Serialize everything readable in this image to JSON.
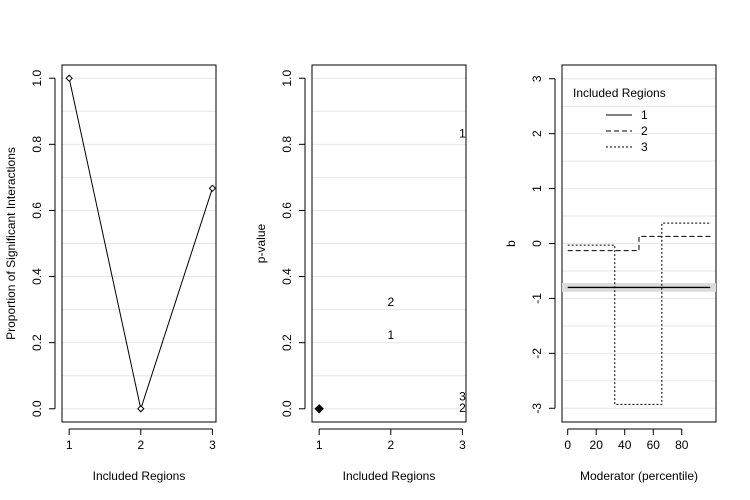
{
  "chart_data": [
    {
      "type": "line",
      "xlabel": "Included Regions",
      "ylabel": "Proportion of Significant Interactions",
      "x": [
        1,
        2,
        3
      ],
      "values": [
        1.0,
        0.0,
        0.667
      ],
      "xlim": [
        0.9,
        3.05
      ],
      "ylim": [
        -0.04,
        1.04
      ],
      "xticks": [
        "1",
        "2",
        "3"
      ],
      "yticks": [
        "0.0",
        "0.2",
        "0.4",
        "0.6",
        "0.8",
        "1.0"
      ],
      "grid": true,
      "marker": "open-diamond"
    },
    {
      "type": "scatter",
      "xlabel": "Included Regions",
      "ylabel": "p-value",
      "xlim": [
        0.9,
        3.05
      ],
      "ylim": [
        -0.04,
        1.04
      ],
      "xticks": [
        "1",
        "2",
        "3"
      ],
      "yticks": [
        "0.0",
        "0.2",
        "0.4",
        "0.6",
        "0.8",
        "1.0"
      ],
      "grid": true,
      "marker_point": {
        "x": 1,
        "y": 0.0
      },
      "labels": [
        {
          "x": 2,
          "y": 0.32,
          "text": "2"
        },
        {
          "x": 2,
          "y": 0.22,
          "text": "1"
        },
        {
          "x": 3,
          "y": 0.83,
          "text": "1"
        },
        {
          "x": 3,
          "y": 0.035,
          "text": "3"
        },
        {
          "x": 3,
          "y": 0.0,
          "text": "2"
        }
      ]
    },
    {
      "type": "line",
      "xlabel": "Moderator (percentile)",
      "ylabel": "b",
      "xlim": [
        -4,
        104
      ],
      "ylim": [
        -3.25,
        3.25
      ],
      "xticks": [
        "0",
        "20",
        "40",
        "60",
        "80"
      ],
      "yticks": [
        "-3",
        "-2",
        "-1",
        "0",
        "1",
        "2",
        "3"
      ],
      "grid": true,
      "legend": {
        "title": "Included Regions",
        "placement": "top-left",
        "entries": [
          "1",
          "2",
          "3"
        ]
      },
      "reference_band": {
        "center": -0.8,
        "low": -0.88,
        "high": -0.72
      },
      "series": [
        {
          "name": "1",
          "dash": "solid",
          "points": [
            [
              0,
              -0.8
            ],
            [
              100,
              -0.8
            ]
          ]
        },
        {
          "name": "2",
          "dash": "dashed",
          "points": [
            [
              0,
              -0.13
            ],
            [
              33,
              -0.13
            ],
            [
              33,
              -0.13
            ],
            [
              50,
              -0.13
            ],
            [
              50,
              0.13
            ],
            [
              100,
              0.13
            ]
          ]
        },
        {
          "name": "3",
          "dash": "dotted",
          "points": [
            [
              0,
              -0.03
            ],
            [
              33,
              -0.03
            ],
            [
              33,
              -2.93
            ],
            [
              66,
              -2.93
            ],
            [
              66,
              0.37
            ],
            [
              100,
              0.37
            ]
          ]
        }
      ]
    }
  ]
}
